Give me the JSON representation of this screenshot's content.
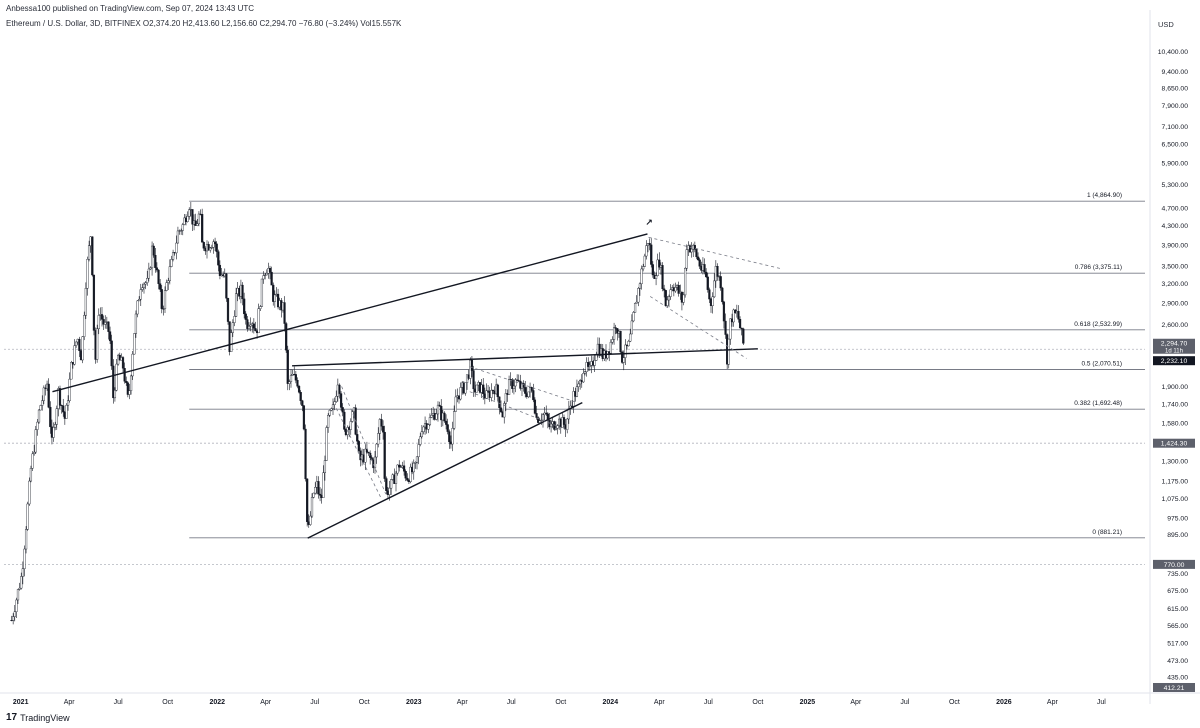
{
  "header": {
    "published": "Anbessa100 published on TradingView.com, Sep 07, 2024 13:43 UTC",
    "symbol_line": "Ethereum / U.S. Dollar, 3D, BITFINEX  O2,374.20  H2,413.60  L2,156.60  C2,294.70  −76.80 (−3.24%)  Vol15.557K"
  },
  "currency": "USD",
  "brand": {
    "icon": "tradingview-logo-icon",
    "label": "TradingView"
  },
  "colors": {
    "candle": "#131722",
    "background": "#ffffff",
    "grid_line": "#b2b5be",
    "price_tag": "#131722",
    "dim_tag": "#5d606b"
  },
  "chart_data": {
    "type": "candlestick",
    "scale": "log",
    "ylim": [
      407,
      11600
    ],
    "xlim": [
      "2020-12-01",
      "2026-09-20"
    ],
    "yticks": [
      "10,400.00",
      "9,400.00",
      "8,650.00",
      "7,900.00",
      "7,100.00",
      "6,500.00",
      "5,900.00",
      "5,300.00",
      "4,700.00",
      "4,300.00",
      "3,900.00",
      "3,500.00",
      "3,200.00",
      "2,900.00",
      "2,600.00",
      "2,294.70",
      "2,232.10",
      "1,900.00",
      "1,740.00",
      "1,580.00",
      "1,424.30",
      "1,300.00",
      "1,175.00",
      "1,075.00",
      "975.00",
      "895.00",
      "770.00",
      "735.00",
      "675.00",
      "615.00",
      "565.00",
      "517.00",
      "473.00",
      "435.00",
      "412.21"
    ],
    "xticks": [
      {
        "label": "2021",
        "date": "2021-01-01",
        "bold": true
      },
      {
        "label": "Apr",
        "date": "2021-04-01"
      },
      {
        "label": "Jul",
        "date": "2021-07-01"
      },
      {
        "label": "Oct",
        "date": "2021-10-01"
      },
      {
        "label": "2022",
        "date": "2022-01-01",
        "bold": true
      },
      {
        "label": "Apr",
        "date": "2022-04-01"
      },
      {
        "label": "Jul",
        "date": "2022-07-01"
      },
      {
        "label": "Oct",
        "date": "2022-10-01"
      },
      {
        "label": "2023",
        "date": "2023-01-01",
        "bold": true
      },
      {
        "label": "Apr",
        "date": "2023-04-01"
      },
      {
        "label": "Jul",
        "date": "2023-07-01"
      },
      {
        "label": "Oct",
        "date": "2023-10-01"
      },
      {
        "label": "2024",
        "date": "2024-01-01",
        "bold": true
      },
      {
        "label": "Apr",
        "date": "2024-04-01"
      },
      {
        "label": "Jul",
        "date": "2024-07-01"
      },
      {
        "label": "Oct",
        "date": "2024-10-01"
      },
      {
        "label": "2025",
        "date": "2025-01-01",
        "bold": true
      },
      {
        "label": "Apr",
        "date": "2025-04-01"
      },
      {
        "label": "Jul",
        "date": "2025-07-01"
      },
      {
        "label": "Oct",
        "date": "2025-10-01"
      },
      {
        "label": "2026",
        "date": "2026-01-01",
        "bold": true
      },
      {
        "label": "Apr",
        "date": "2026-04-01"
      },
      {
        "label": "Jul",
        "date": "2026-07-01"
      }
    ],
    "price_tags": [
      {
        "price": 2294.7,
        "label": "2,294.70",
        "sub": "1d 11h"
      },
      {
        "price": 2232.1,
        "label": "2,232.10"
      },
      {
        "price": 1424.3,
        "label": "1,424.30"
      },
      {
        "price": 770,
        "label": "770.00"
      },
      {
        "price": 412.21,
        "label": "412.21"
      }
    ],
    "dotted_levels": [
      2294.7,
      1424.3,
      770
    ],
    "fib_levels": [
      {
        "label": "1 (4,864.90)",
        "price": 4864.9,
        "start": "2021-11-10"
      },
      {
        "label": "0.786 (3,375.11)",
        "price": 3375.11,
        "start": "2021-11-10"
      },
      {
        "label": "0.618 (2,532.99)",
        "price": 2532.99,
        "start": "2021-11-10"
      },
      {
        "label": "0.5 (2,070.51)",
        "price": 2070.51,
        "start": "2021-11-10"
      },
      {
        "label": "0.382 (1,692.48)",
        "price": 1692.48,
        "start": "2021-11-10"
      },
      {
        "label": "0 (881.21)",
        "price": 881.21,
        "start": "2021-11-10"
      }
    ],
    "trendlines": [
      {
        "style": "solid",
        "from": [
          "2021-03-01",
          1850
        ],
        "to": [
          "2024-03-10",
          4120
        ]
      },
      {
        "style": "solid",
        "from": [
          "2022-06-18",
          880
        ],
        "to": [
          "2023-11-10",
          1750
        ]
      },
      {
        "style": "solid",
        "from": [
          "2022-05-20",
          2110
        ],
        "to": [
          "2024-10-01",
          2300
        ]
      },
      {
        "style": "dotted",
        "from": [
          "2024-03-12",
          4050
        ],
        "to": [
          "2024-11-15",
          3450
        ]
      },
      {
        "style": "dotted",
        "from": [
          "2024-03-15",
          3000
        ],
        "to": [
          "2024-09-10",
          2190
        ]
      },
      {
        "style": "dotted",
        "from": [
          "2022-08-20",
          1900
        ],
        "to": [
          "2022-11-10",
          1100
        ]
      },
      {
        "style": "dotted",
        "from": [
          "2022-08-10",
          1700
        ],
        "to": [
          "2022-11-01",
          1080
        ]
      },
      {
        "style": "dotted",
        "from": [
          "2023-04-15",
          2100
        ],
        "to": [
          "2023-11-01",
          1750
        ]
      },
      {
        "style": "dotted",
        "from": [
          "2023-04-15",
          1850
        ],
        "to": [
          "2023-10-15",
          1520
        ]
      }
    ],
    "markers": [
      {
        "glyph": "↗",
        "date": "2024-03-13",
        "price": 4300
      },
      {
        "glyph": "↑",
        "date": "2024-01-23",
        "price": 2200
      }
    ],
    "price_path": [
      [
        "2020-12-15",
        580
      ],
      [
        "2021-01-03",
        730
      ],
      [
        "2021-01-20",
        1250
      ],
      [
        "2021-02-05",
        1700
      ],
      [
        "2021-02-19",
        1930
      ],
      [
        "2021-02-28",
        1420
      ],
      [
        "2021-03-12",
        1850
      ],
      [
        "2021-03-25",
        1600
      ],
      [
        "2021-04-05",
        2100
      ],
      [
        "2021-04-16",
        2450
      ],
      [
        "2021-04-24",
        2200
      ],
      [
        "2021-05-03",
        3400
      ],
      [
        "2021-05-12",
        4200
      ],
      [
        "2021-05-19",
        2100
      ],
      [
        "2021-05-26",
        2800
      ],
      [
        "2021-06-05",
        2600
      ],
      [
        "2021-06-15",
        2500
      ],
      [
        "2021-06-22",
        1800
      ],
      [
        "2021-07-01",
        2200
      ],
      [
        "2021-07-10",
        2100
      ],
      [
        "2021-07-20",
        1750
      ],
      [
        "2021-08-01",
        2600
      ],
      [
        "2021-08-13",
        3250
      ],
      [
        "2021-08-25",
        3200
      ],
      [
        "2021-09-03",
        3900
      ],
      [
        "2021-09-12",
        3300
      ],
      [
        "2021-09-21",
        2800
      ],
      [
        "2021-10-01",
        3300
      ],
      [
        "2021-10-10",
        3600
      ],
      [
        "2021-10-20",
        4150
      ],
      [
        "2021-10-29",
        4300
      ],
      [
        "2021-11-10",
        4800
      ],
      [
        "2021-11-20",
        4200
      ],
      [
        "2021-11-30",
        4600
      ],
      [
        "2021-12-04",
        3900
      ],
      [
        "2021-12-15",
        3900
      ],
      [
        "2021-12-27",
        4000
      ],
      [
        "2022-01-05",
        3400
      ],
      [
        "2022-01-15",
        3300
      ],
      [
        "2022-01-24",
        2300
      ],
      [
        "2022-02-05",
        3000
      ],
      [
        "2022-02-15",
        3100
      ],
      [
        "2022-02-24",
        2600
      ],
      [
        "2022-03-05",
        2700
      ],
      [
        "2022-03-15",
        2500
      ],
      [
        "2022-03-28",
        3400
      ],
      [
        "2022-04-05",
        3500
      ],
      [
        "2022-04-15",
        3000
      ],
      [
        "2022-04-25",
        2900
      ],
      [
        "2022-05-05",
        2800
      ],
      [
        "2022-05-12",
        1900
      ],
      [
        "2022-05-20",
        2000
      ],
      [
        "2022-05-30",
        1950
      ],
      [
        "2022-06-10",
        1700
      ],
      [
        "2022-06-18",
        880
      ],
      [
        "2022-06-28",
        1100
      ],
      [
        "2022-07-05",
        1150
      ],
      [
        "2022-07-13",
        1050
      ],
      [
        "2022-07-25",
        1600
      ],
      [
        "2022-08-05",
        1700
      ],
      [
        "2022-08-14",
        2000
      ],
      [
        "2022-08-25",
        1500
      ],
      [
        "2022-09-05",
        1600
      ],
      [
        "2022-09-12",
        1650
      ],
      [
        "2022-09-22",
        1300
      ],
      [
        "2022-10-05",
        1350
      ],
      [
        "2022-10-20",
        1280
      ],
      [
        "2022-10-30",
        1600
      ],
      [
        "2022-11-05",
        1550
      ],
      [
        "2022-11-09",
        1100
      ],
      [
        "2022-11-20",
        1150
      ],
      [
        "2022-12-05",
        1280
      ],
      [
        "2022-12-20",
        1200
      ],
      [
        "2023-01-05",
        1260
      ],
      [
        "2023-01-15",
        1550
      ],
      [
        "2023-01-30",
        1600
      ],
      [
        "2023-02-15",
        1700
      ],
      [
        "2023-03-05",
        1550
      ],
      [
        "2023-03-12",
        1400
      ],
      [
        "2023-03-20",
        1800
      ],
      [
        "2023-04-05",
        1900
      ],
      [
        "2023-04-16",
        2100
      ],
      [
        "2023-04-24",
        1850
      ],
      [
        "2023-05-05",
        1900
      ],
      [
        "2023-05-15",
        1800
      ],
      [
        "2023-06-01",
        1900
      ],
      [
        "2023-06-15",
        1650
      ],
      [
        "2023-06-25",
        1900
      ],
      [
        "2023-07-10",
        1950
      ],
      [
        "2023-07-25",
        1850
      ],
      [
        "2023-08-10",
        1850
      ],
      [
        "2023-08-17",
        1620
      ],
      [
        "2023-09-01",
        1650
      ],
      [
        "2023-09-11",
        1540
      ],
      [
        "2023-09-25",
        1600
      ],
      [
        "2023-10-10",
        1560
      ],
      [
        "2023-10-23",
        1800
      ],
      [
        "2023-11-05",
        1900
      ],
      [
        "2023-11-12",
        2100
      ],
      [
        "2023-11-25",
        2050
      ],
      [
        "2023-12-08",
        2350
      ],
      [
        "2023-12-20",
        2200
      ],
      [
        "2024-01-01",
        2350
      ],
      [
        "2024-01-12",
        2650
      ],
      [
        "2024-01-23",
        2200
      ],
      [
        "2024-02-05",
        2350
      ],
      [
        "2024-02-15",
        2800
      ],
      [
        "2024-02-28",
        3400
      ],
      [
        "2024-03-12",
        4050
      ],
      [
        "2024-03-20",
        3300
      ],
      [
        "2024-04-01",
        3600
      ],
      [
        "2024-04-13",
        2900
      ],
      [
        "2024-04-25",
        3200
      ],
      [
        "2024-05-05",
        3100
      ],
      [
        "2024-05-15",
        2900
      ],
      [
        "2024-05-22",
        3900
      ],
      [
        "2024-06-05",
        3800
      ],
      [
        "2024-06-18",
        3450
      ],
      [
        "2024-06-26",
        3350
      ],
      [
        "2024-07-05",
        2850
      ],
      [
        "2024-07-15",
        3450
      ],
      [
        "2024-07-25",
        3200
      ],
      [
        "2024-08-05",
        2200
      ],
      [
        "2024-08-12",
        2700
      ],
      [
        "2024-08-24",
        2750
      ],
      [
        "2024-09-06",
        2294
      ]
    ]
  }
}
